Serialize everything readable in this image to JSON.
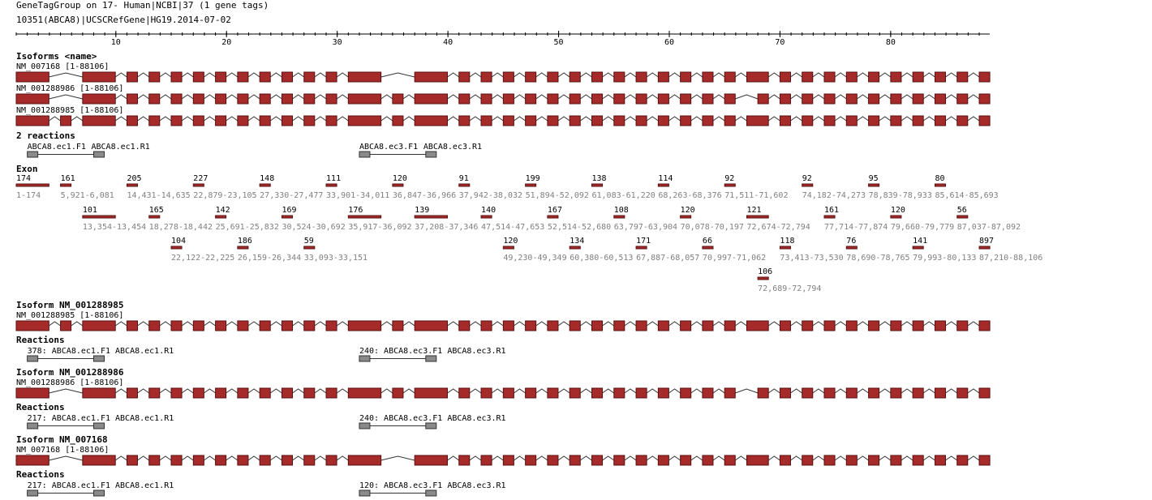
{
  "header": {
    "title": "GeneTagGroup on 17- Human|NCBI|37 (1 gene tags)",
    "gene": "10351(ABCA8)|UCSCRefGene|HG19.2014-07-02"
  },
  "ruler": {
    "ticks": [
      10,
      20,
      30,
      40,
      50,
      60,
      70,
      80
    ]
  },
  "isoforms": {
    "title": "Isoforms <name>",
    "items": [
      {
        "name": "NM_007168 [1-88106]"
      },
      {
        "name": "NM_001288986 [1-88106]"
      },
      {
        "name": "NM_001288985 [1-88106]"
      }
    ]
  },
  "reactions": {
    "title": "2 reactions",
    "items": [
      {
        "forward": "ABCA8.ec1.F1",
        "reverse": "ABCA8.ec1.R1"
      },
      {
        "forward": "ABCA8.ec3.F1",
        "reverse": "ABCA8.ec3.R1"
      }
    ]
  },
  "exons": {
    "title": "Exon",
    "items": [
      {
        "length": 174,
        "range": "1-174"
      },
      {
        "length": 161,
        "range": "5,921-6,081"
      },
      {
        "length": 101,
        "range": "13,354-13,454"
      },
      {
        "length": 205,
        "range": "14,431-14,635"
      },
      {
        "length": 165,
        "range": "18,278-18,442"
      },
      {
        "length": 104,
        "range": "22,122-22,225"
      },
      {
        "length": 227,
        "range": "22,879-23,105"
      },
      {
        "length": 142,
        "range": "25,691-25,832"
      },
      {
        "length": 186,
        "range": "26,159-26,344"
      },
      {
        "length": 148,
        "range": "27,330-27,477"
      },
      {
        "length": 169,
        "range": "30,524-30,692"
      },
      {
        "length": 59,
        "range": "33,093-33,151"
      },
      {
        "length": 111,
        "range": "33,901-34,011"
      },
      {
        "length": 176,
        "range": "35,917-36,092"
      },
      {
        "length": 120,
        "range": "36,847-36,966"
      },
      {
        "length": 139,
        "range": "37,208-37,346"
      },
      {
        "length": 91,
        "range": "37,942-38,032"
      },
      {
        "length": 140,
        "range": "47,514-47,653"
      },
      {
        "length": 120,
        "range": "49,230-49,349"
      },
      {
        "length": 199,
        "range": "51,894-52,092"
      },
      {
        "length": 167,
        "range": "52,514-52,680"
      },
      {
        "length": 134,
        "range": "60,380-60,513"
      },
      {
        "length": 138,
        "range": "61,083-61,220"
      },
      {
        "length": 108,
        "range": "63,797-63,904"
      },
      {
        "length": 171,
        "range": "67,887-68,057"
      },
      {
        "length": 114,
        "range": "68,263-68,376"
      },
      {
        "length": 120,
        "range": "70,078-70,197"
      },
      {
        "length": 66,
        "range": "70,997-71,062"
      },
      {
        "length": 92,
        "range": "71,511-71,602"
      },
      {
        "length": 121,
        "range": "72,674-72,794"
      },
      {
        "length": 106,
        "range": "72,689-72,794"
      },
      {
        "length": 118,
        "range": "73,413-73,530"
      },
      {
        "length": 92,
        "range": "74,182-74,273"
      },
      {
        "length": 161,
        "range": "77,714-77,874"
      },
      {
        "length": 76,
        "range": "78,690-78,765"
      },
      {
        "length": 95,
        "range": "78,839-78,933"
      },
      {
        "length": 120,
        "range": "79,660-79,779"
      },
      {
        "length": 141,
        "range": "79,993-80,133"
      },
      {
        "length": 80,
        "range": "85,614-85,693"
      },
      {
        "length": 56,
        "range": "87,037-87,092"
      },
      {
        "length": 897,
        "range": "87,210-88,106"
      }
    ]
  },
  "isoform_details": [
    {
      "title": "Isoform NM_001288985",
      "track": "NM_001288985 [1-88106]",
      "reactions_title": "Reactions",
      "reactions": [
        "378: ABCA8.ec1.F1 ABCA8.ec1.R1",
        "240: ABCA8.ec3.F1 ABCA8.ec3.R1"
      ]
    },
    {
      "title": "Isoform NM_001288986",
      "track": "NM_001288986 [1-88106]",
      "reactions_title": "Reactions",
      "reactions": [
        "217: ABCA8.ec1.F1 ABCA8.ec1.R1",
        "240: ABCA8.ec3.F1 ABCA8.ec3.R1"
      ]
    },
    {
      "title": "Isoform NM_007168",
      "track": "NM_007168 [1-88106]",
      "reactions_title": "Reactions",
      "reactions": [
        "217: ABCA8.ec1.F1 ABCA8.ec1.R1",
        "120: ABCA8.ec3.F1 ABCA8.ec3.R1"
      ]
    }
  ]
}
